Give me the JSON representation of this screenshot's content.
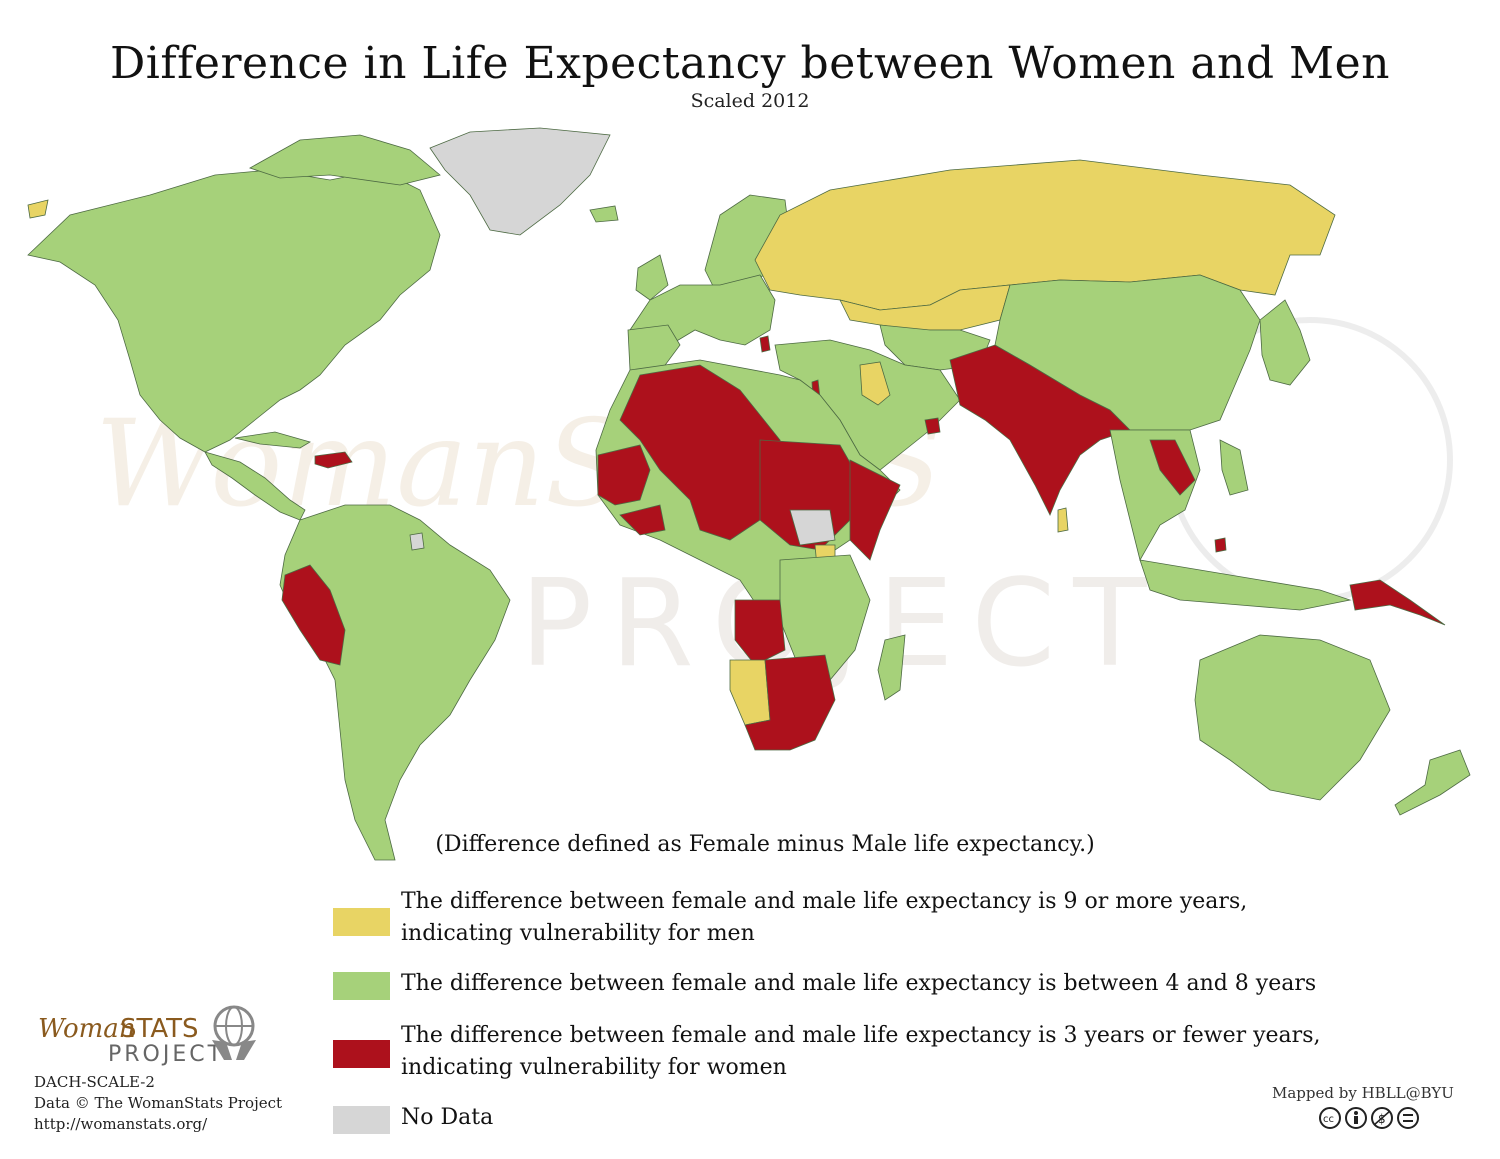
{
  "title": "Difference in Life Expectancy between Women and Men",
  "subtitle": "Scaled 2012",
  "note": "(Difference defined as Female minus Male life expectancy.)",
  "colors": {
    "men_vulnerable": "#e8d464",
    "moderate": "#a6d17a",
    "women_vulnerable": "#ad111c",
    "no_data": "#d6d6d6",
    "border": "#4d6a43"
  },
  "legend": [
    {
      "color": "#e8d464",
      "label": "The difference between female and male life expectancy is 9 or more years,\nindicating vulnerability for men"
    },
    {
      "color": "#a6d17a",
      "label": "The difference between female and male life expectancy is between 4 and 8 years"
    },
    {
      "color": "#ad111c",
      "label": "The difference between female and male life expectancy is 3 years or fewer years,\nindicating vulnerability for women"
    },
    {
      "color": "#d6d6d6",
      "label": "No Data"
    }
  ],
  "footer": {
    "code": "DACH-SCALE-2",
    "data_credit": "Data © The WomanStats Project",
    "url": "http://womanstats.org/"
  },
  "logo": {
    "woman": "Woman",
    "stats": "STATS",
    "project": "PROJECT"
  },
  "watermark": {
    "line1": "WomanSTATS",
    "line2": "PROJECT"
  },
  "mapped_by": "Mapped by HBLL@BYU",
  "license_icons": [
    "cc-icon",
    "by-icon",
    "nc-icon",
    "nd-icon"
  ]
}
